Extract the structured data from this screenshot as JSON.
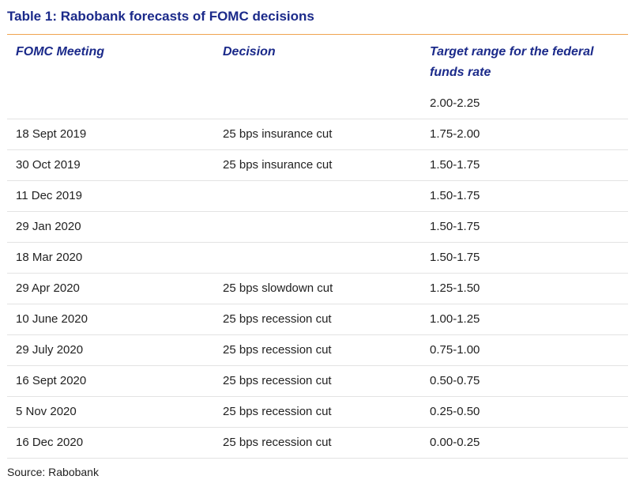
{
  "title": "Table 1: Rabobank forecasts of FOMC decisions",
  "columns": [
    "FOMC Meeting",
    "Decision",
    "Target range for the federal funds rate"
  ],
  "rows": [
    {
      "meeting": "",
      "decision": "",
      "range": "2.00-2.25"
    },
    {
      "meeting": "18 Sept 2019",
      "decision": "25 bps insurance cut",
      "range": "1.75-2.00"
    },
    {
      "meeting": "30 Oct 2019",
      "decision": "25 bps insurance cut",
      "range": "1.50-1.75"
    },
    {
      "meeting": "11 Dec 2019",
      "decision": "",
      "range": "1.50-1.75"
    },
    {
      "meeting": "29 Jan 2020",
      "decision": "",
      "range": "1.50-1.75"
    },
    {
      "meeting": "18 Mar 2020",
      "decision": "",
      "range": "1.50-1.75"
    },
    {
      "meeting": "29 Apr 2020",
      "decision": "25 bps slowdown cut",
      "range": "1.25-1.50"
    },
    {
      "meeting": "10 June 2020",
      "decision": "25 bps recession cut",
      "range": "1.00-1.25"
    },
    {
      "meeting": "29 July 2020",
      "decision": "25 bps recession cut",
      "range": "0.75-1.00"
    },
    {
      "meeting": "16 Sept 2020",
      "decision": "25 bps recession cut",
      "range": "0.50-0.75"
    },
    {
      "meeting": "5 Nov 2020",
      "decision": "25 bps recession cut",
      "range": "0.25-0.50"
    },
    {
      "meeting": "16 Dec 2020",
      "decision": "25 bps recession cut",
      "range": "0.00-0.25"
    }
  ],
  "source": "Source: Rabobank",
  "colors": {
    "heading": "#1b2a8a",
    "accent_rule": "#f0a350",
    "row_divider": "#e3e3e3"
  }
}
